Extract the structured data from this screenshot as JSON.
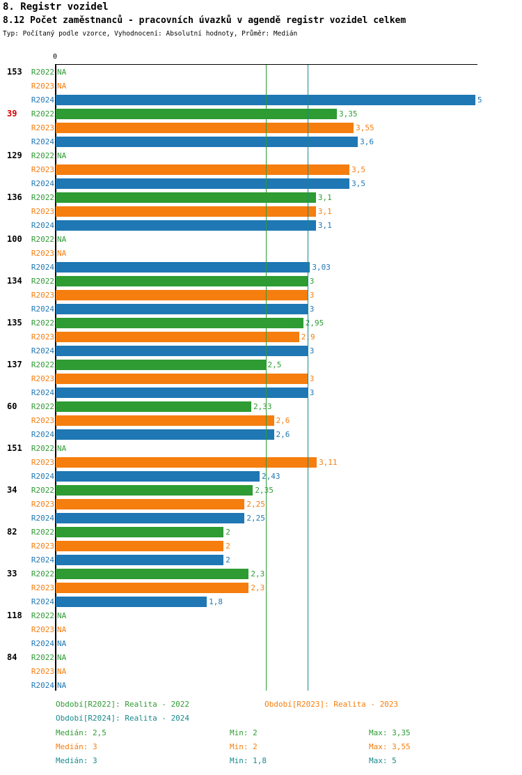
{
  "page": {
    "title_line1": "8. Registr vozidel",
    "title_line2": "8.12 Počet zaměstnanců - pracovních úvazků v agendě registr vozidel celkem",
    "subtitle": "Typ: Počítaný podle vzorce, Vyhodnocení: Absolutní hodnoty, Průměr: Medián"
  },
  "colors": {
    "r2022": "#2E9B33",
    "r2023": "#F57E0F",
    "r2024": "#1F77B4",
    "r2024_text": "#18898D",
    "highlight_id": "#D40000",
    "id_default": "#000000",
    "median_line_2_5": "#2E9B33",
    "median_line_3": "#18898D",
    "axis": "#000000"
  },
  "chart_data": {
    "type": "bar",
    "orientation": "horizontal",
    "title": "8.12 Počet zaměstnanců - pracovních úvazků v agendě registr vozidel celkem",
    "x_axis": {
      "min": 0,
      "max": 5,
      "tick_labels": [
        "0"
      ]
    },
    "series": [
      "R2022",
      "R2023",
      "R2024"
    ],
    "median_lines": [
      {
        "value": 2.5
      },
      {
        "value": 3
      }
    ],
    "groups": [
      {
        "id": "153",
        "highlight": false,
        "bars": [
          {
            "s": "R2022",
            "v": null,
            "t": "NA"
          },
          {
            "s": "R2023",
            "v": null,
            "t": "NA"
          },
          {
            "s": "R2024",
            "v": 5,
            "t": "5"
          }
        ]
      },
      {
        "id": "39",
        "highlight": true,
        "bars": [
          {
            "s": "R2022",
            "v": 3.35,
            "t": "3,35"
          },
          {
            "s": "R2023",
            "v": 3.55,
            "t": "3,55"
          },
          {
            "s": "R2024",
            "v": 3.6,
            "t": "3,6"
          }
        ]
      },
      {
        "id": "129",
        "highlight": false,
        "bars": [
          {
            "s": "R2022",
            "v": null,
            "t": "NA"
          },
          {
            "s": "R2023",
            "v": 3.5,
            "t": "3,5"
          },
          {
            "s": "R2024",
            "v": 3.5,
            "t": "3,5"
          }
        ]
      },
      {
        "id": "136",
        "highlight": false,
        "bars": [
          {
            "s": "R2022",
            "v": 3.1,
            "t": "3,1"
          },
          {
            "s": "R2023",
            "v": 3.1,
            "t": "3,1"
          },
          {
            "s": "R2024",
            "v": 3.1,
            "t": "3,1"
          }
        ]
      },
      {
        "id": "100",
        "highlight": false,
        "bars": [
          {
            "s": "R2022",
            "v": null,
            "t": "NA"
          },
          {
            "s": "R2023",
            "v": null,
            "t": "NA"
          },
          {
            "s": "R2024",
            "v": 3.03,
            "t": "3,03"
          }
        ]
      },
      {
        "id": "134",
        "highlight": false,
        "bars": [
          {
            "s": "R2022",
            "v": 3,
            "t": "3"
          },
          {
            "s": "R2023",
            "v": 3,
            "t": "3"
          },
          {
            "s": "R2024",
            "v": 3,
            "t": "3"
          }
        ]
      },
      {
        "id": "135",
        "highlight": false,
        "bars": [
          {
            "s": "R2022",
            "v": 2.95,
            "t": "2,95"
          },
          {
            "s": "R2023",
            "v": 2.9,
            "t": "2,9"
          },
          {
            "s": "R2024",
            "v": 3,
            "t": "3"
          }
        ]
      },
      {
        "id": "137",
        "highlight": false,
        "bars": [
          {
            "s": "R2022",
            "v": 2.5,
            "t": "2,5"
          },
          {
            "s": "R2023",
            "v": 3,
            "t": "3"
          },
          {
            "s": "R2024",
            "v": 3,
            "t": "3"
          }
        ]
      },
      {
        "id": "60",
        "highlight": false,
        "bars": [
          {
            "s": "R2022",
            "v": 2.33,
            "t": "2,33"
          },
          {
            "s": "R2023",
            "v": 2.6,
            "t": "2,6"
          },
          {
            "s": "R2024",
            "v": 2.6,
            "t": "2,6"
          }
        ]
      },
      {
        "id": "151",
        "highlight": false,
        "bars": [
          {
            "s": "R2022",
            "v": null,
            "t": "NA"
          },
          {
            "s": "R2023",
            "v": 3.11,
            "t": "3,11"
          },
          {
            "s": "R2024",
            "v": 2.43,
            "t": "2,43"
          }
        ]
      },
      {
        "id": "34",
        "highlight": false,
        "bars": [
          {
            "s": "R2022",
            "v": 2.35,
            "t": "2,35"
          },
          {
            "s": "R2023",
            "v": 2.25,
            "t": "2,25"
          },
          {
            "s": "R2024",
            "v": 2.25,
            "t": "2,25"
          }
        ]
      },
      {
        "id": "82",
        "highlight": false,
        "bars": [
          {
            "s": "R2022",
            "v": 2,
            "t": "2"
          },
          {
            "s": "R2023",
            "v": 2,
            "t": "2"
          },
          {
            "s": "R2024",
            "v": 2,
            "t": "2"
          }
        ]
      },
      {
        "id": "33",
        "highlight": false,
        "bars": [
          {
            "s": "R2022",
            "v": 2.3,
            "t": "2,3"
          },
          {
            "s": "R2023",
            "v": 2.3,
            "t": "2,3"
          },
          {
            "s": "R2024",
            "v": 1.8,
            "t": "1,8"
          }
        ]
      },
      {
        "id": "118",
        "highlight": false,
        "bars": [
          {
            "s": "R2022",
            "v": null,
            "t": "NA"
          },
          {
            "s": "R2023",
            "v": null,
            "t": "NA"
          },
          {
            "s": "R2024",
            "v": null,
            "t": "NA"
          }
        ]
      },
      {
        "id": "84",
        "highlight": false,
        "bars": [
          {
            "s": "R2022",
            "v": null,
            "t": "NA"
          },
          {
            "s": "R2023",
            "v": null,
            "t": "NA"
          },
          {
            "s": "R2024",
            "v": null,
            "t": "NA"
          }
        ]
      }
    ]
  },
  "legend": {
    "r2022": "Období[R2022]: Realita - 2022",
    "r2023": "Období[R2023]: Realita - 2023",
    "r2024": "Období[R2024]: Realita - 2024"
  },
  "stats": {
    "r2022": {
      "median": "Medián: 2,5",
      "min": "Min: 2",
      "max": "Max: 3,35"
    },
    "r2023": {
      "median": "Medián: 3",
      "min": "Min: 2",
      "max": "Max: 3,55"
    },
    "r2024": {
      "median": "Medián: 3",
      "min": "Min: 1,8",
      "max": "Max: 5"
    }
  }
}
